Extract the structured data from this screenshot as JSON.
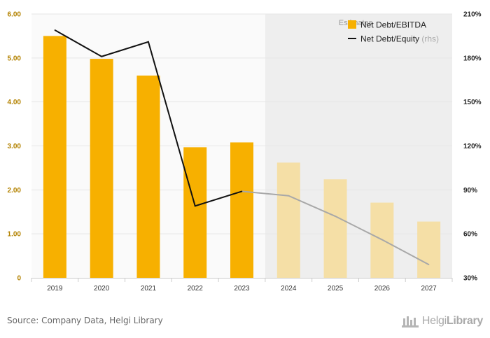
{
  "chart_data": {
    "type": "bar",
    "categories": [
      "2019",
      "2020",
      "2021",
      "2022",
      "2023",
      "2024",
      "2025",
      "2026",
      "2027"
    ],
    "series": [
      {
        "name": "Net Debt/EBITDA",
        "kind": "bar",
        "axis": "left",
        "values": [
          5.5,
          4.98,
          4.6,
          2.97,
          3.08,
          2.62,
          2.24,
          1.71,
          1.28
        ],
        "color": "#f7b000",
        "estimate_color": "#f5dfa6"
      },
      {
        "name": "Net Debt/Equity",
        "kind": "line",
        "axis": "right",
        "values": [
          199,
          181,
          191,
          79,
          89,
          86,
          72,
          56,
          39
        ],
        "color": "#111111",
        "estimate_color": "#a8a8a8"
      }
    ],
    "estimates_from_index": 5,
    "estimates_label": "Estimates",
    "left_axis": {
      "ylim": [
        0,
        6
      ],
      "ticks": [
        "0",
        "1.00",
        "2.00",
        "3.00",
        "4.00",
        "5.00",
        "6.00"
      ]
    },
    "right_axis": {
      "ylim": [
        30,
        210
      ],
      "unit": "%",
      "ticks": [
        "30%",
        "60%",
        "90%",
        "120%",
        "150%",
        "180%",
        "210%"
      ]
    },
    "legend": {
      "position": "top-right",
      "rhs_suffix": "(rhs)"
    },
    "grid": true
  },
  "footer": {
    "source": "Source: Company Data, Helgi Library",
    "logo_regular": "Helgi",
    "logo_bold": "Library"
  }
}
